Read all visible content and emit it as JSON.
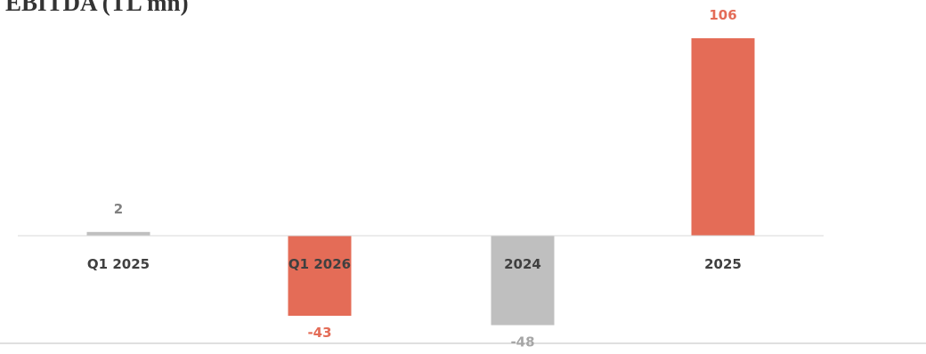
{
  "chart_data": {
    "type": "bar",
    "title": "EBITDA (TL mn)",
    "categories": [
      "Q1 2025",
      "Q1 2026",
      "2024",
      "2025"
    ],
    "values": [
      2,
      -43,
      -48,
      106
    ],
    "bar_colors": [
      "#BFBFBF",
      "#E46C57",
      "#BFBFBF",
      "#E46C57"
    ],
    "label_colors": [
      "#808080",
      "#E46C57",
      "#A6A6A6",
      "#E46C57"
    ],
    "xlabel": "",
    "ylabel": "",
    "ylim": [
      -48,
      106
    ],
    "grid": false,
    "legend": "none"
  }
}
